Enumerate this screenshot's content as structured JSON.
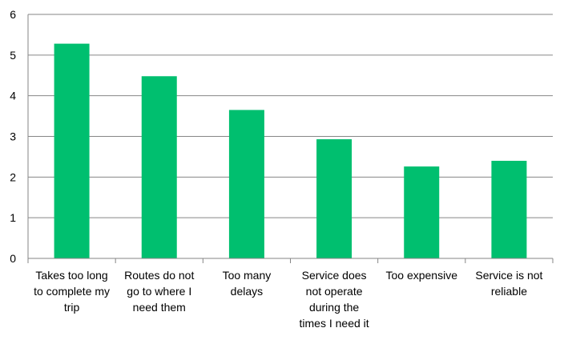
{
  "chart_data": {
    "type": "bar",
    "title": "",
    "xlabel": "",
    "ylabel": "",
    "ylim": [
      0,
      6
    ],
    "y_ticks": [
      "0",
      "1",
      "2",
      "3",
      "4",
      "5",
      "6"
    ],
    "grid": "horizontal",
    "legend": "none",
    "bar_color": "#00BF6F",
    "categories": [
      [
        "Takes too long",
        "to complete my",
        "trip"
      ],
      [
        "Routes do not",
        "go to where I",
        "need them"
      ],
      [
        "Too many",
        "delays"
      ],
      [
        "Service does",
        "not operate",
        "during the",
        "times I need it"
      ],
      [
        "Too expensive"
      ],
      [
        "Service is not",
        "reliable"
      ]
    ],
    "values": [
      5.28,
      4.48,
      3.65,
      2.93,
      2.26,
      2.4
    ]
  }
}
